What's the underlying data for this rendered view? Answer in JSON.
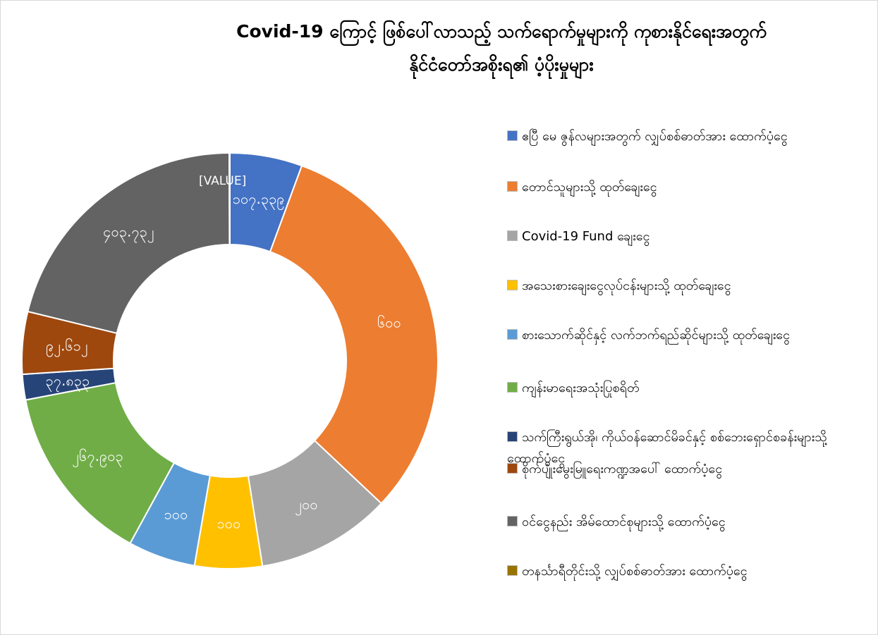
{
  "chart_data": {
    "type": "donut",
    "title": [
      "Covid-19 ကြောင့် ဖြစ်ပေါ်လာသည့် သက်ရောက်မှုများကို ကုစားနိုင်ရေးအတွက်",
      "နိုင်ငံတော်အစိုးရ၏ ပံ့ပိုးမှုများ"
    ],
    "categories": [
      "ဧပြီ မေ ဇွန်လများအတွက် လျှပ်စစ်ဓာတ်အား ထောက်ပံ့ငွေ",
      "တောင်သူများသို့ ထုတ်ချေးငွေ",
      "Covid-19 Fund ချေးငွေ",
      "အသေးစားချေးငွေလုပ်ငန်းများသို့ ထုတ်ချေးငွေ",
      "စားသောက်ဆိုင်နှင့် လက်ဘက်ရည်ဆိုင်များသို့ ထုတ်ချေးငွေ",
      "ကျန်းမာရေးအသုံးပြုစရိတ်",
      "သက်ကြီးရွယ်အို၊ ကိုယ်ဝန်ဆောင်မိခင်နှင့် စစ်ဘေးရှောင်စခန်းများသို့ ထောက်ပံ့ငွေ",
      "စိုက်ပျိုးမွေးမြူရေးကဏ္ဍအပေါ် ထောက်ပံ့ငွေ",
      "ဝင်ငွေနည်း အိမ်ထောင်စုများသို့ ထောက်ပံ့ငွေ",
      "တနင်္သာရီတိုင်းသို့ လျှပ်စစ်ဓာတ်အား ထောက်ပံ့ငွေ"
    ],
    "values": [
      107.339,
      600,
      200,
      100,
      100,
      267.903,
      37.833,
      92.612,
      403.732,
      1
    ],
    "value_labels": [
      "၁၀၇.၃၃၉",
      "၆၀၀",
      "၂၀၀",
      "၁၀၀",
      "၁၀၀",
      "၂၆၇.၉၀၃",
      "၃၇.၈၃၃",
      "၉၂.၆၁၂",
      "၄၀၃.၇၃၂",
      "[VALUE]"
    ],
    "colors": [
      "#4472c4",
      "#ed7d31",
      "#a5a5a5",
      "#ffc000",
      "#5b9bd5",
      "#70ad47",
      "#264478",
      "#9e480e",
      "#636363",
      "#997300"
    ]
  }
}
